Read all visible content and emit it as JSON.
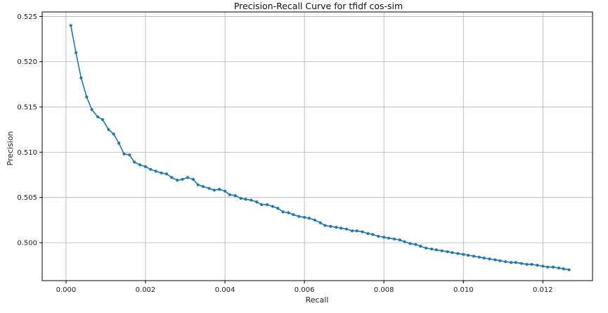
{
  "chart_data": {
    "type": "line",
    "title": "Precision-Recall Curve for tfidf cos-sim",
    "xlabel": "Recall",
    "ylabel": "Precision",
    "xlim": [
      -0.0006,
      0.01325
    ],
    "ylim": [
      0.4958,
      0.5255
    ],
    "xticks": [
      0.0,
      0.002,
      0.004,
      0.006,
      0.008,
      0.01,
      0.012
    ],
    "xtick_labels": [
      "0.000",
      "0.002",
      "0.004",
      "0.006",
      "0.008",
      "0.010",
      "0.012"
    ],
    "yticks": [
      0.5,
      0.505,
      0.51,
      0.515,
      0.52,
      0.525
    ],
    "ytick_labels": [
      "0.500",
      "0.505",
      "0.510",
      "0.515",
      "0.520",
      "0.525"
    ],
    "grid": true,
    "color": "#1f77b4",
    "marker": "circle",
    "series": [
      {
        "name": "",
        "points": [
          [
            0.00012,
            0.524
          ],
          [
            0.00025,
            0.521
          ],
          [
            0.00038,
            0.5182
          ],
          [
            0.00052,
            0.5161
          ],
          [
            0.00065,
            0.5147
          ],
          [
            0.0008,
            0.5139
          ],
          [
            0.00092,
            0.5136
          ],
          [
            0.00107,
            0.5125
          ],
          [
            0.0012,
            0.512
          ],
          [
            0.00133,
            0.511
          ],
          [
            0.00146,
            0.5098
          ],
          [
            0.0016,
            0.5097
          ],
          [
            0.00172,
            0.5089
          ],
          [
            0.00186,
            0.5086
          ],
          [
            0.002,
            0.5084
          ],
          [
            0.00213,
            0.5081
          ],
          [
            0.00226,
            0.5079
          ],
          [
            0.0024,
            0.5077
          ],
          [
            0.00253,
            0.5076
          ],
          [
            0.00266,
            0.5072
          ],
          [
            0.0028,
            0.5069
          ],
          [
            0.00293,
            0.507
          ],
          [
            0.00306,
            0.5072
          ],
          [
            0.0032,
            0.507
          ],
          [
            0.00332,
            0.5064
          ],
          [
            0.00345,
            0.5062
          ],
          [
            0.0036,
            0.506
          ],
          [
            0.00373,
            0.5058
          ],
          [
            0.00386,
            0.5059
          ],
          [
            0.004,
            0.5057
          ],
          [
            0.00412,
            0.5053
          ],
          [
            0.00426,
            0.5052
          ],
          [
            0.0044,
            0.5049
          ],
          [
            0.00452,
            0.5048
          ],
          [
            0.00466,
            0.5047
          ],
          [
            0.0048,
            0.5045
          ],
          [
            0.00492,
            0.5042
          ],
          [
            0.00506,
            0.5042
          ],
          [
            0.0052,
            0.504
          ],
          [
            0.00533,
            0.5038
          ],
          [
            0.00546,
            0.5034
          ],
          [
            0.0056,
            0.5033
          ],
          [
            0.00572,
            0.5031
          ],
          [
            0.00586,
            0.5029
          ],
          [
            0.006,
            0.5028
          ],
          [
            0.00612,
            0.5027
          ],
          [
            0.00626,
            0.5025
          ],
          [
            0.0064,
            0.5022
          ],
          [
            0.00652,
            0.5019
          ],
          [
            0.00666,
            0.5018
          ],
          [
            0.0068,
            0.5017
          ],
          [
            0.00692,
            0.5016
          ],
          [
            0.00706,
            0.5015
          ],
          [
            0.0072,
            0.5013
          ],
          [
            0.00732,
            0.5013
          ],
          [
            0.00746,
            0.5012
          ],
          [
            0.0076,
            0.501
          ],
          [
            0.00772,
            0.5009
          ],
          [
            0.00786,
            0.5007
          ],
          [
            0.008,
            0.5006
          ],
          [
            0.00812,
            0.5005
          ],
          [
            0.00826,
            0.5004
          ],
          [
            0.0084,
            0.5003
          ],
          [
            0.00852,
            0.5001
          ],
          [
            0.00866,
            0.4999
          ],
          [
            0.0088,
            0.4998
          ],
          [
            0.00892,
            0.4996
          ],
          [
            0.00906,
            0.4994
          ],
          [
            0.0092,
            0.4993
          ],
          [
            0.00932,
            0.4992
          ],
          [
            0.00946,
            0.4991
          ],
          [
            0.0096,
            0.499
          ],
          [
            0.00972,
            0.4989
          ],
          [
            0.00986,
            0.4988
          ],
          [
            0.01,
            0.4987
          ],
          [
            0.01012,
            0.4986
          ],
          [
            0.01026,
            0.4985
          ],
          [
            0.0104,
            0.4984
          ],
          [
            0.01052,
            0.4983
          ],
          [
            0.01066,
            0.4982
          ],
          [
            0.0108,
            0.4981
          ],
          [
            0.01092,
            0.498
          ],
          [
            0.01106,
            0.4979
          ],
          [
            0.0112,
            0.4978
          ],
          [
            0.01132,
            0.4978
          ],
          [
            0.01146,
            0.4977
          ],
          [
            0.0116,
            0.4976
          ],
          [
            0.01172,
            0.4976
          ],
          [
            0.01186,
            0.4975
          ],
          [
            0.012,
            0.4974
          ],
          [
            0.01212,
            0.4973
          ],
          [
            0.01226,
            0.4973
          ],
          [
            0.0124,
            0.4972
          ],
          [
            0.01252,
            0.4971
          ],
          [
            0.01266,
            0.497
          ]
        ]
      }
    ]
  }
}
